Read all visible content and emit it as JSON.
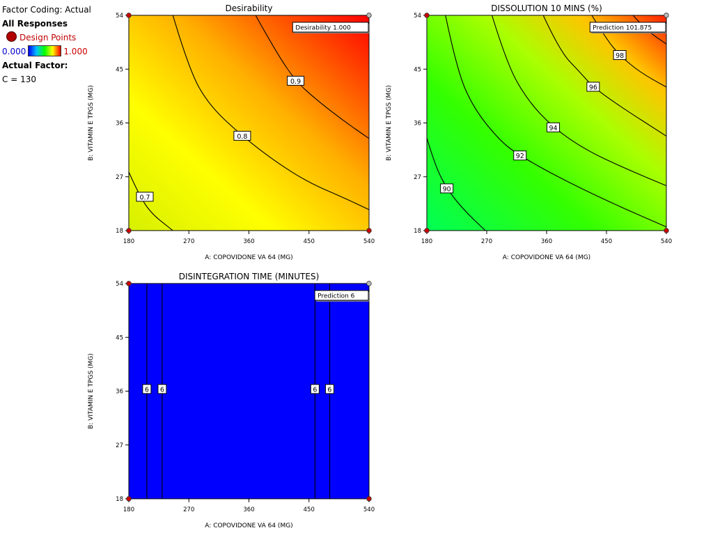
{
  "legend": {
    "factor_coding": "Factor Coding: Actual",
    "responses_title": "All Responses",
    "design_points_label": "Design Points",
    "color_low": "0.000",
    "color_high": "1.000",
    "actual_factor_title": "Actual Factor:",
    "actual_factor_value": "C = 130"
  },
  "chart_data": [
    {
      "type": "contour",
      "title": "Desirability",
      "xlabel": "A: COPOVIDONE VA 64 (MG)",
      "ylabel": "B: VITAMIN E TPGS (MG)",
      "xlim": [
        180,
        540
      ],
      "ylim": [
        18,
        54
      ],
      "x_ticks": [
        "180",
        "270",
        "360",
        "450",
        "540"
      ],
      "y_ticks": [
        "18",
        "27",
        "36",
        "45",
        "54"
      ],
      "contours": [
        {
          "level": "0.7",
          "points": [
            [
              180,
              27.8
            ],
            [
              193,
              24.5
            ],
            [
              212,
              21
            ],
            [
              246,
              18
            ]
          ],
          "label_at": [
            204,
            23.6
          ]
        },
        {
          "level": "0.8",
          "points": [
            [
              246,
              54
            ],
            [
              270,
              45
            ],
            [
              300,
              39
            ],
            [
              350,
              33.8
            ],
            [
              400,
              29.5
            ],
            [
              450,
              26
            ],
            [
              500,
              23.6
            ],
            [
              540,
              21.5
            ]
          ],
          "label_at": [
            350,
            33.8
          ]
        },
        {
          "level": "0.9",
          "points": [
            [
              370,
              54
            ],
            [
              400,
              48
            ],
            [
              430,
              43
            ],
            [
              460,
              40
            ],
            [
              500,
              36.5
            ],
            [
              540,
              33.4
            ]
          ],
          "label_at": [
            430,
            43
          ]
        }
      ],
      "annotation": {
        "text": "Desirability  1.000",
        "at": [
          540,
          54
        ]
      },
      "design_points": [
        [
          180,
          18
        ],
        [
          540,
          18
        ],
        [
          180,
          54
        ],
        [
          540,
          54
        ]
      ]
    },
    {
      "type": "contour",
      "title": "DISSOLUTION 10 MINS (%)",
      "xlabel": "A: COPOVIDONE VA 64 (MG)",
      "ylabel": "B: VITAMIN E TPGS (MG)",
      "xlim": [
        180,
        540
      ],
      "ylim": [
        18,
        54
      ],
      "x_ticks": [
        "180",
        "270",
        "360",
        "450",
        "540"
      ],
      "y_ticks": [
        "18",
        "27",
        "36",
        "45",
        "54"
      ],
      "contours": [
        {
          "level": "90",
          "points": [
            [
              180,
              33.5
            ],
            [
              192,
              29
            ],
            [
              210,
              25
            ],
            [
              235,
              21.5
            ],
            [
              268,
              18
            ]
          ],
          "label_at": [
            210,
            25
          ]
        },
        {
          "level": "92",
          "points": [
            [
              208,
              54
            ],
            [
              225,
              45
            ],
            [
              250,
              38.5
            ],
            [
              290,
              33
            ],
            [
              320,
              30.5
            ],
            [
              380,
              26.8
            ],
            [
              450,
              23
            ],
            [
              540,
              18.6
            ]
          ],
          "label_at": [
            320,
            30.5
          ]
        },
        {
          "level": "94",
          "points": [
            [
              278,
              54
            ],
            [
              300,
              46
            ],
            [
              330,
              40
            ],
            [
              370,
              35.2
            ],
            [
              420,
              31.4
            ],
            [
              480,
              28.3
            ],
            [
              540,
              25.5
            ]
          ],
          "label_at": [
            370,
            35.2
          ]
        },
        {
          "level": "96",
          "points": [
            [
              355,
              54
            ],
            [
              380,
              48
            ],
            [
              410,
              44.5
            ],
            [
              430,
              42
            ],
            [
              470,
              38.8
            ],
            [
              540,
              33.8
            ]
          ],
          "label_at": [
            430,
            42
          ]
        },
        {
          "level": "98",
          "points": [
            [
              428,
              54
            ],
            [
              450,
              50
            ],
            [
              470,
              47.3
            ],
            [
              500,
              44.5
            ],
            [
              540,
              42
            ]
          ],
          "label_at": [
            470,
            47.3
          ]
        },
        {
          "level": "100",
          "points": [
            [
              490,
              54
            ],
            [
              510,
              51.5
            ],
            [
              540,
              49.2
            ]
          ],
          "label_at": null
        }
      ],
      "annotation": {
        "text": "Prediction  101.875",
        "at": [
          540,
          54
        ]
      },
      "design_points": [
        [
          180,
          18
        ],
        [
          540,
          18
        ],
        [
          180,
          54
        ],
        [
          540,
          54
        ]
      ]
    },
    {
      "type": "contour",
      "title": "DISINTEGRATION TIME (MINUTES)",
      "xlabel": "A: COPOVIDONE VA 64 (MG)",
      "ylabel": "B: VITAMIN E TPGS (MG)",
      "xlim": [
        180,
        540
      ],
      "ylim": [
        18,
        54
      ],
      "x_ticks": [
        "180",
        "270",
        "360",
        "450",
        "540"
      ],
      "y_ticks": [
        "18",
        "27",
        "36",
        "45",
        "54"
      ],
      "contours": [
        {
          "level": "6",
          "points": [
            [
              207,
              18
            ],
            [
              207,
              54
            ]
          ],
          "label_at": [
            207,
            36.3
          ]
        },
        {
          "level": "6",
          "points": [
            [
              230,
              18
            ],
            [
              230,
              54
            ]
          ],
          "label_at": [
            230,
            36.3
          ]
        },
        {
          "level": "6",
          "points": [
            [
              459,
              18
            ],
            [
              459,
              54
            ]
          ],
          "label_at": [
            459,
            36.3
          ]
        },
        {
          "level": "6",
          "points": [
            [
              481,
              18
            ],
            [
              481,
              54
            ]
          ],
          "label_at": [
            481,
            36.3
          ]
        }
      ],
      "annotation": {
        "text": "Prediction  6",
        "at": [
          540,
          54
        ]
      },
      "design_points": [
        [
          180,
          18
        ],
        [
          540,
          18
        ],
        [
          180,
          54
        ],
        [
          540,
          54
        ]
      ]
    }
  ]
}
